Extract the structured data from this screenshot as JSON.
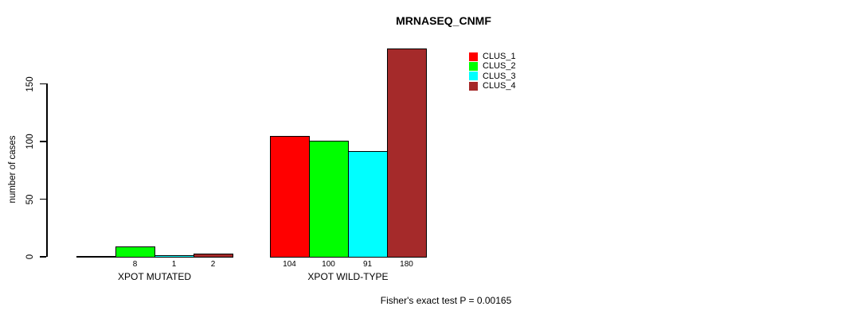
{
  "chart_data": {
    "type": "bar",
    "title": "MRNASEQ_CNMF",
    "ylabel": "number of cases",
    "xlabel": "",
    "yticks": [
      "0",
      "50",
      "100",
      "150"
    ],
    "ylim": [
      0,
      180
    ],
    "grid": false,
    "legend": {
      "position": "top-right",
      "entries": [
        {
          "label": "CLUS_1",
          "color": "#ff0000"
        },
        {
          "label": "CLUS_2",
          "color": "#00ff00"
        },
        {
          "label": "CLUS_3",
          "color": "#00ffff"
        },
        {
          "label": "CLUS_4",
          "color": "#a52a2a"
        }
      ]
    },
    "groups": [
      {
        "label": "XPOT MUTATED",
        "bars": [
          {
            "cluster": "CLUS_1",
            "value": 0,
            "value_label": "",
            "color": "#ff0000"
          },
          {
            "cluster": "CLUS_2",
            "value": 8,
            "value_label": "8",
            "color": "#00ff00"
          },
          {
            "cluster": "CLUS_3",
            "value": 1,
            "value_label": "1",
            "color": "#00ffff"
          },
          {
            "cluster": "CLUS_4",
            "value": 2,
            "value_label": "2",
            "color": "#a52a2a"
          }
        ]
      },
      {
        "label": "XPOT WILD-TYPE",
        "bars": [
          {
            "cluster": "CLUS_1",
            "value": 104,
            "value_label": "104",
            "color": "#ff0000"
          },
          {
            "cluster": "CLUS_2",
            "value": 100,
            "value_label": "100",
            "color": "#00ff00"
          },
          {
            "cluster": "CLUS_3",
            "value": 91,
            "value_label": "91",
            "color": "#00ffff"
          },
          {
            "cluster": "CLUS_4",
            "value": 180,
            "value_label": "180",
            "color": "#a52a2a"
          }
        ]
      }
    ],
    "annotation": "Fisher's exact test P = 0.00165"
  }
}
